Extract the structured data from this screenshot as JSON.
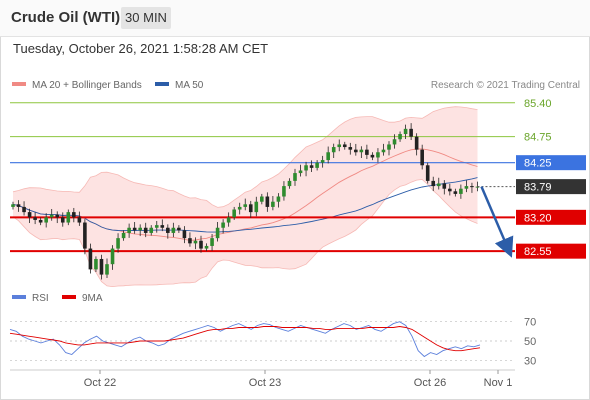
{
  "header": {
    "title": "Crude Oil (WTI)",
    "interval": "30 MIN"
  },
  "datetime": "Tuesday, October 26, 2021 1:58:28 AM CET",
  "legend": {
    "bollinger": {
      "label": "MA 20 + Bollinger Bands",
      "color": "#f08a84"
    },
    "ma50": {
      "label": "MA 50",
      "color": "#2c5da8"
    }
  },
  "credit": "Research © 2021 Trading Central",
  "rsi_legend": {
    "rsi": {
      "label": "RSI",
      "color": "#5b7fdb"
    },
    "ma9": {
      "label": "9MA",
      "color": "#e00000"
    }
  },
  "chart_data": {
    "type": "candlestick",
    "y_range": [
      81.9,
      85.55
    ],
    "x_labels": [
      "Oct 22",
      "Oct 23",
      "Oct 26",
      "Nov 1"
    ],
    "current_price": "83.79",
    "levels": [
      {
        "value": 85.4,
        "label": "85.40",
        "kind": "resistance-minor",
        "color": "#8dc63f"
      },
      {
        "value": 84.75,
        "label": "84.75",
        "kind": "resistance-minor",
        "color": "#8dc63f"
      },
      {
        "value": 84.25,
        "label": "84.25",
        "kind": "pivot",
        "color": "#3b73e0"
      },
      {
        "value": 83.2,
        "label": "83.20",
        "kind": "support",
        "color": "#e00000"
      },
      {
        "value": 82.55,
        "label": "82.55",
        "kind": "support",
        "color": "#e00000"
      }
    ],
    "close_series": [
      83.45,
      83.4,
      83.3,
      83.2,
      83.15,
      83.1,
      83.2,
      83.25,
      83.2,
      83.1,
      83.3,
      83.2,
      83.1,
      82.6,
      82.2,
      82.4,
      82.1,
      82.3,
      82.6,
      82.8,
      82.9,
      83.0,
      82.95,
      83.0,
      82.9,
      83.0,
      83.05,
      83.0,
      82.9,
      83.0,
      82.95,
      82.8,
      82.7,
      82.75,
      82.6,
      82.65,
      82.8,
      83.0,
      83.1,
      83.2,
      83.35,
      83.4,
      83.45,
      83.3,
      83.5,
      83.6,
      83.4,
      83.5,
      83.6,
      83.8,
      83.9,
      84.05,
      84.1,
      84.2,
      84.15,
      84.25,
      84.3,
      84.45,
      84.55,
      84.6,
      84.55,
      84.5,
      84.45,
      84.5,
      84.4,
      84.35,
      84.45,
      84.5,
      84.6,
      84.7,
      84.8,
      84.9,
      84.75,
      84.5,
      84.2,
      83.9,
      83.8,
      83.85,
      83.75,
      83.7,
      83.65,
      83.75,
      83.8,
      83.78,
      83.79
    ],
    "projection": {
      "from": 83.79,
      "to": 82.6
    },
    "rsi": {
      "y_ticks": [
        70,
        50,
        30
      ],
      "y_range": [
        20,
        80
      ],
      "rsi_series": [
        62,
        60,
        55,
        52,
        50,
        48,
        50,
        52,
        46,
        38,
        36,
        42,
        48,
        52,
        55,
        50,
        48,
        46,
        44,
        48,
        52,
        54,
        50,
        48,
        45,
        47,
        52,
        55,
        58,
        60,
        62,
        64,
        66,
        64,
        60,
        63,
        66,
        68,
        65,
        62,
        66,
        68,
        67,
        64,
        62,
        60,
        63,
        66,
        64,
        62,
        60,
        58,
        62,
        65,
        68,
        66,
        62,
        64,
        66,
        62,
        60,
        64,
        68,
        70,
        66,
        55,
        40,
        34,
        38,
        36,
        40,
        42,
        44,
        42,
        45,
        44,
        46
      ],
      "ma_series": [
        58,
        57,
        56,
        55,
        54,
        53,
        52,
        51,
        50,
        48,
        47,
        46,
        46,
        47,
        48,
        48,
        48,
        48,
        48,
        48,
        49,
        50,
        50,
        50,
        50,
        50,
        51,
        52,
        53,
        55,
        57,
        59,
        61,
        62,
        62,
        63,
        63,
        64,
        64,
        64,
        64,
        65,
        65,
        65,
        64,
        64,
        64,
        64,
        64,
        63,
        63,
        62,
        62,
        63,
        63,
        63,
        63,
        63,
        64,
        64,
        64,
        64,
        64,
        65,
        64,
        62,
        58,
        54,
        50,
        46,
        43,
        41,
        40,
        40,
        41,
        42,
        43
      ]
    }
  }
}
